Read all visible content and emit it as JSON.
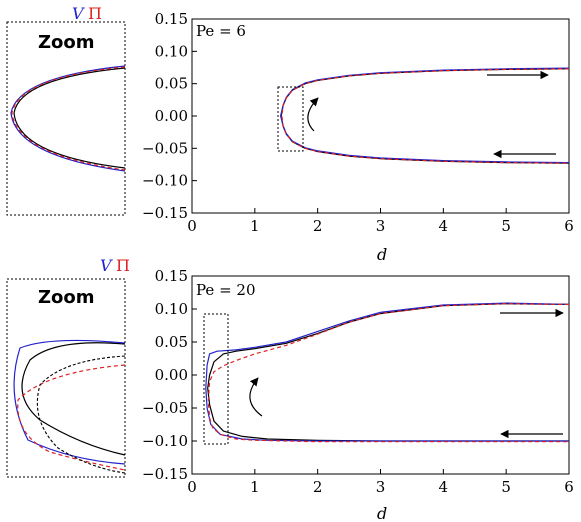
{
  "legend": {
    "V": {
      "label": "V",
      "color": "#2222cc"
    },
    "Pi": {
      "label": "Π",
      "color": "#dd2222"
    },
    "third_color": "#000000"
  },
  "zoom_label": "Zoom",
  "chart_data": [
    {
      "type": "line",
      "annotation": "Pe = 6",
      "xlabel": "d",
      "ylabel": "",
      "xlim": [
        0,
        6
      ],
      "ylim": [
        -0.15,
        0.15
      ],
      "xticks": [
        "0",
        "1",
        "2",
        "3",
        "4",
        "5",
        "6"
      ],
      "yticks": [
        "0.15",
        "0.10",
        "0.05",
        "0.00",
        "−0.05",
        "−0.10",
        "−0.15"
      ],
      "grid": false,
      "series": [
        {
          "color": "#000000",
          "dash": "",
          "x": [
            6.0,
            5.0,
            4.0,
            3.0,
            2.5,
            2.0,
            1.8,
            1.6,
            1.5,
            1.45,
            1.42,
            1.45,
            1.5,
            1.6,
            1.8,
            2.0,
            2.5,
            3.0,
            4.0,
            5.0,
            6.0
          ],
          "y": [
            0.073,
            0.072,
            0.07,
            0.066,
            0.062,
            0.055,
            0.05,
            0.04,
            0.028,
            0.016,
            0.0,
            -0.016,
            -0.028,
            -0.04,
            -0.05,
            -0.055,
            -0.062,
            -0.066,
            -0.07,
            -0.072,
            -0.073
          ]
        },
        {
          "color": "#2222cc",
          "dash": "",
          "x": [
            6.0,
            5.0,
            4.0,
            3.0,
            2.5,
            2.0,
            1.8,
            1.6,
            1.5,
            1.45,
            1.41,
            1.45,
            1.5,
            1.6,
            1.8,
            2.0,
            2.5,
            3.0,
            4.0,
            5.0,
            6.0
          ],
          "y": [
            0.074,
            0.073,
            0.071,
            0.067,
            0.063,
            0.056,
            0.051,
            0.041,
            0.029,
            0.017,
            0.0,
            -0.015,
            -0.027,
            -0.039,
            -0.049,
            -0.054,
            -0.061,
            -0.065,
            -0.069,
            -0.071,
            -0.072
          ]
        },
        {
          "color": "#dd2222",
          "dash": "4,3",
          "x": [
            6.0,
            5.0,
            4.0,
            3.0,
            2.5,
            2.0,
            1.8,
            1.6,
            1.5,
            1.45,
            1.43,
            1.45,
            1.5,
            1.6,
            1.8,
            2.0,
            2.5,
            3.0,
            4.0,
            5.0,
            6.0
          ],
          "y": [
            0.073,
            0.072,
            0.07,
            0.066,
            0.062,
            0.055,
            0.05,
            0.04,
            0.028,
            0.016,
            0.0,
            -0.016,
            -0.028,
            -0.04,
            -0.05,
            -0.055,
            -0.062,
            -0.066,
            -0.07,
            -0.072,
            -0.073
          ]
        }
      ]
    },
    {
      "type": "line",
      "annotation": "Pe = 20",
      "xlabel": "d",
      "ylabel": "",
      "xlim": [
        0,
        6
      ],
      "ylim": [
        -0.15,
        0.15
      ],
      "xticks": [
        "0",
        "1",
        "2",
        "3",
        "4",
        "5",
        "6"
      ],
      "yticks": [
        "0.15",
        "0.10",
        "0.05",
        "0.00",
        "−0.05",
        "−0.10",
        "−0.15"
      ],
      "grid": false,
      "series": [
        {
          "color": "#000000",
          "dash": "",
          "x": [
            6.0,
            5.0,
            4.0,
            3.0,
            2.5,
            2.0,
            1.5,
            1.0,
            0.7,
            0.5,
            0.35,
            0.28,
            0.25,
            0.28,
            0.35,
            0.5,
            0.8,
            1.2,
            2.0,
            3.0,
            4.0,
            6.0
          ],
          "y": [
            0.107,
            0.108,
            0.105,
            0.093,
            0.08,
            0.063,
            0.048,
            0.04,
            0.036,
            0.032,
            0.02,
            0.0,
            -0.02,
            -0.045,
            -0.07,
            -0.085,
            -0.093,
            -0.097,
            -0.099,
            -0.1,
            -0.1,
            -0.1
          ]
        },
        {
          "color": "#2222cc",
          "dash": "",
          "x": [
            6.0,
            5.0,
            4.0,
            3.0,
            2.5,
            2.0,
            1.5,
            1.0,
            0.7,
            0.4,
            0.28,
            0.24,
            0.22,
            0.24,
            0.3,
            0.45,
            0.8,
            1.2,
            2.0,
            3.0,
            4.0,
            6.0
          ],
          "y": [
            0.107,
            0.109,
            0.106,
            0.095,
            0.082,
            0.066,
            0.05,
            0.042,
            0.038,
            0.036,
            0.032,
            0.015,
            -0.02,
            -0.05,
            -0.075,
            -0.09,
            -0.097,
            -0.099,
            -0.1,
            -0.1,
            -0.1,
            -0.1
          ]
        },
        {
          "color": "#dd2222",
          "dash": "4,3",
          "x": [
            6.0,
            5.0,
            4.0,
            3.0,
            2.5,
            2.0,
            1.5,
            1.0,
            0.7,
            0.5,
            0.35,
            0.28,
            0.26,
            0.28,
            0.33,
            0.45,
            0.7,
            1.0,
            1.5,
            2.0,
            3.0,
            4.0,
            6.0
          ],
          "y": [
            0.107,
            0.108,
            0.105,
            0.093,
            0.08,
            0.062,
            0.045,
            0.032,
            0.022,
            0.014,
            0.005,
            -0.01,
            -0.04,
            -0.065,
            -0.08,
            -0.09,
            -0.097,
            -0.099,
            -0.1,
            -0.101,
            -0.101,
            -0.101,
            -0.101
          ]
        }
      ]
    }
  ]
}
